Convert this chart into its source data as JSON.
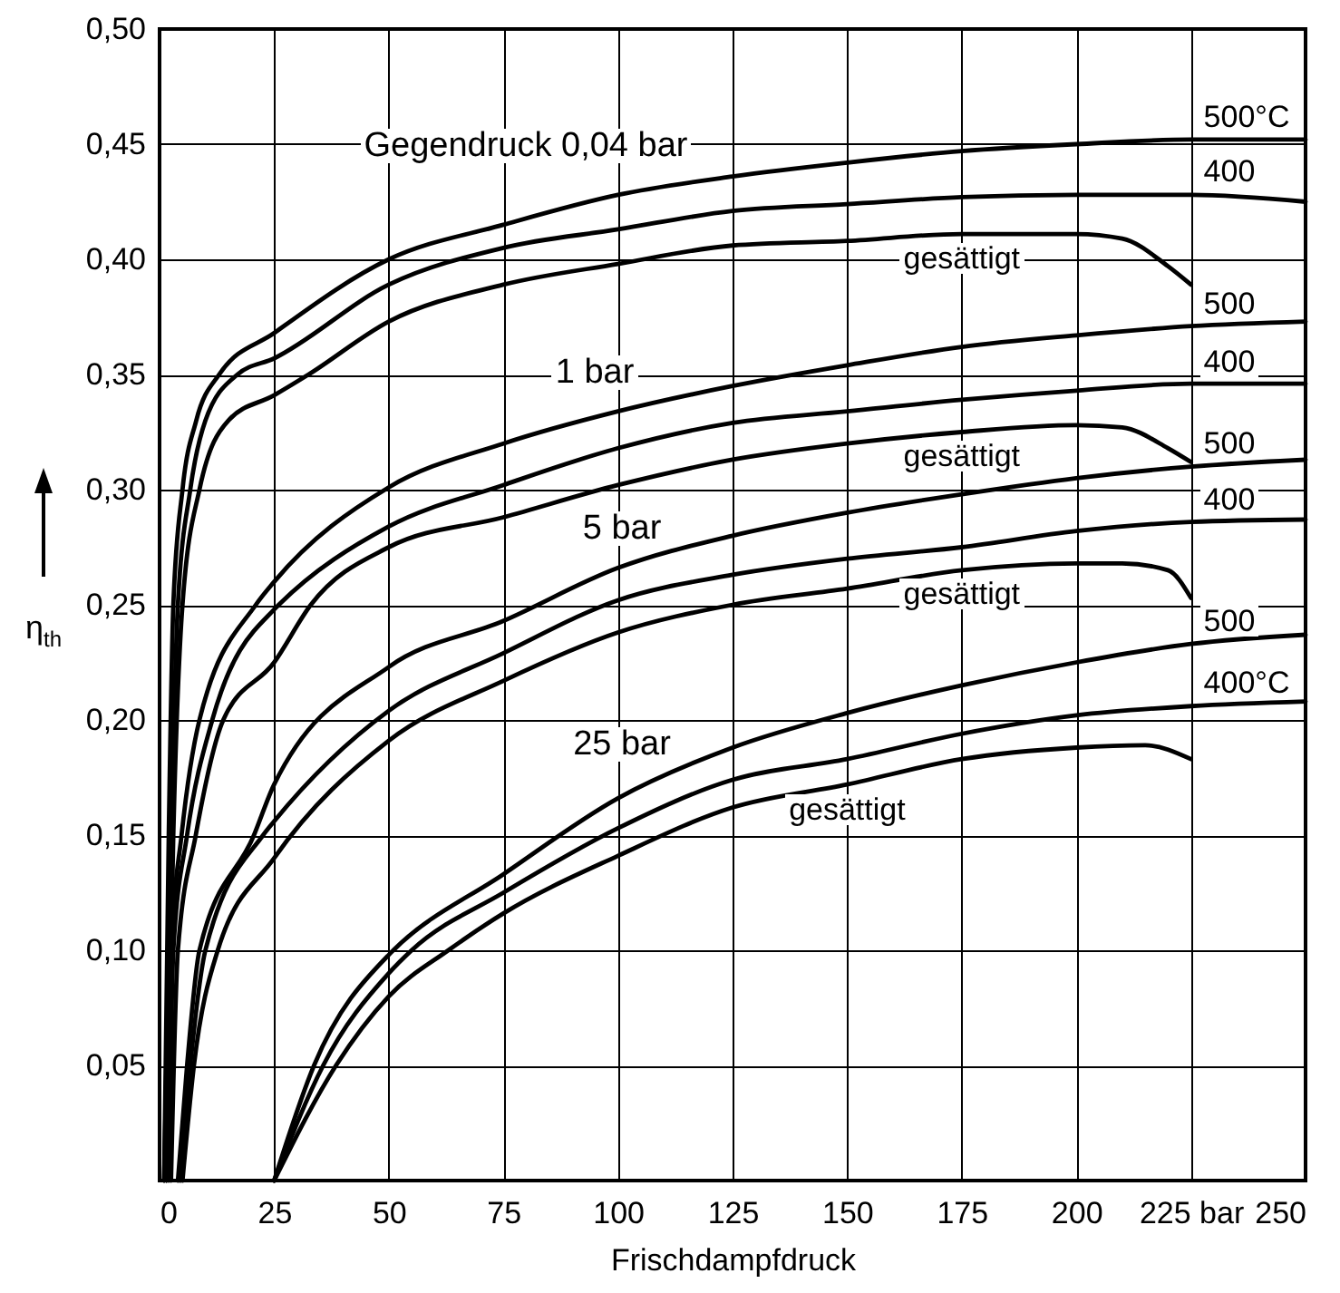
{
  "chart_data": {
    "type": "line",
    "xlabel": "Frischdampfdruck",
    "ylabel": "η$_{th}$",
    "xlim": [
      0,
      250
    ],
    "ylim": [
      0,
      0.5
    ],
    "xticks": [
      0,
      25,
      50,
      75,
      100,
      125,
      150,
      175,
      200,
      {
        "value": 225,
        "label": "225 bar"
      },
      250
    ],
    "yticks": [
      {
        "value": 0,
        "label": null
      },
      {
        "value": 0.05,
        "label": "0,05"
      },
      {
        "value": 0.1,
        "label": "0,10"
      },
      {
        "value": 0.15,
        "label": "0,15"
      },
      {
        "value": 0.2,
        "label": "0,20"
      },
      {
        "value": 0.25,
        "label": "0,25"
      },
      {
        "value": 0.3,
        "label": "0,30"
      },
      {
        "value": 0.35,
        "label": "0,35"
      },
      {
        "value": 0.4,
        "label": "0,40"
      },
      {
        "value": 0.45,
        "label": "0,45"
      },
      {
        "value": 0.5,
        "label": "0,50"
      }
    ],
    "grid": true,
    "series": [
      {
        "name": "500°C",
        "color": "#000000",
        "x": [
          1,
          2,
          3,
          5,
          8,
          13,
          25,
          50,
          75,
          100,
          125,
          150,
          175,
          200,
          225,
          250
        ],
        "values": [
          0,
          0.15,
          0.25,
          0.3,
          0.33,
          0.35,
          0.368,
          0.4,
          0.415,
          0.428,
          0.436,
          0.442,
          0.447,
          0.45,
          0.452,
          0.452
        ]
      },
      {
        "name": "400",
        "color": "#000000",
        "x": [
          1,
          2.5,
          4,
          6.7,
          10,
          17,
          25,
          50,
          75,
          100,
          125,
          150,
          175,
          200,
          225,
          250
        ],
        "values": [
          0,
          0.15,
          0.25,
          0.3,
          0.33,
          0.35,
          0.357,
          0.389,
          0.405,
          0.413,
          0.421,
          0.424,
          0.427,
          0.428,
          0.428,
          0.425
        ]
      },
      {
        "name": "gesättigt",
        "color": "#000000",
        "x": [
          1.5,
          3,
          5,
          8.7,
          15,
          25,
          32.5,
          50,
          75,
          100,
          125,
          150,
          175,
          200,
          210,
          220,
          225
        ],
        "values": [
          0,
          0.15,
          0.25,
          0.3,
          0.33,
          0.341,
          0.35,
          0.373,
          0.389,
          0.398,
          0.406,
          0.408,
          0.411,
          0.411,
          0.409,
          0.397,
          0.389
        ]
      },
      {
        "name": "500",
        "color": "#000000",
        "x": [
          1.5,
          2.5,
          4.8,
          8.7,
          21,
          25,
          50,
          75,
          100,
          125,
          150,
          175,
          200,
          225,
          250
        ],
        "values": [
          0,
          0.1,
          0.15,
          0.2,
          0.25,
          0.26,
          0.301,
          0.32,
          0.334,
          0.345,
          0.354,
          0.362,
          0.367,
          0.371,
          0.373
        ]
      },
      {
        "name": "400",
        "color": "#000000",
        "x": [
          2,
          3,
          6,
          11.5,
          25,
          26,
          50,
          75,
          100,
          125,
          150,
          175,
          200,
          225,
          250
        ],
        "values": [
          0,
          0.1,
          0.15,
          0.2,
          0.248,
          0.25,
          0.284,
          0.302,
          0.318,
          0.329,
          0.334,
          0.339,
          0.343,
          0.346,
          0.346
        ]
      },
      {
        "name": "gesättigt",
        "color": "#000000",
        "x": [
          2.5,
          4,
          7.9,
          13.9,
          25,
          33,
          50,
          75,
          100,
          125,
          150,
          175,
          200,
          210,
          220,
          225
        ],
        "values": [
          0,
          0.1,
          0.15,
          0.2,
          0.225,
          0.25,
          0.275,
          0.288,
          0.302,
          0.313,
          0.32,
          0.325,
          0.328,
          0.327,
          0.318,
          0.312
        ]
      },
      {
        "name": "500",
        "color": "#000000",
        "x": [
          4,
          6,
          8.7,
          20.6,
          25,
          50,
          75,
          100,
          125,
          150,
          175,
          200,
          225,
          250
        ],
        "values": [
          0,
          0.05,
          0.1,
          0.15,
          0.172,
          0.223,
          0.243,
          0.266,
          0.28,
          0.29,
          0.298,
          0.305,
          0.31,
          0.313
        ]
      },
      {
        "name": "400",
        "color": "#000000",
        "x": [
          4.5,
          6.7,
          10,
          22.6,
          25,
          50,
          75,
          100,
          125,
          150,
          175,
          200,
          225,
          250
        ],
        "values": [
          0,
          0.05,
          0.1,
          0.15,
          0.156,
          0.204,
          0.229,
          0.252,
          0.263,
          0.27,
          0.275,
          0.282,
          0.286,
          0.287
        ]
      },
      {
        "name": "gesättigt",
        "color": "#000000",
        "x": [
          5,
          7.5,
          12.7,
          25,
          50,
          75,
          100,
          125,
          150,
          175,
          200,
          210,
          220,
          225
        ],
        "values": [
          0,
          0.05,
          0.1,
          0.14,
          0.191,
          0.217,
          0.238,
          0.25,
          0.257,
          0.265,
          0.268,
          0.268,
          0.265,
          0.253
        ]
      },
      {
        "name": "500",
        "color": "#000000",
        "x": [
          25,
          33.7,
          50,
          51,
          75,
          100,
          125,
          150,
          175,
          200,
          225,
          250
        ],
        "values": [
          0,
          0.05,
          0.098,
          0.1,
          0.133,
          0.166,
          0.188,
          0.203,
          0.215,
          0.225,
          0.233,
          0.237
        ]
      },
      {
        "name": "400°C",
        "color": "#000000",
        "x": [
          25,
          35.7,
          50,
          55,
          75,
          100,
          125,
          150,
          175,
          200,
          225,
          250
        ],
        "values": [
          0,
          0.05,
          0.09,
          0.1,
          0.125,
          0.153,
          0.174,
          0.183,
          0.194,
          0.202,
          0.206,
          0.208
        ]
      },
      {
        "name": "gesättigt",
        "color": "#000000",
        "x": [
          25,
          38.5,
          50,
          63,
          75,
          100,
          125,
          150,
          175,
          200,
          215,
          225
        ],
        "values": [
          0,
          0.05,
          0.08,
          0.1,
          0.116,
          0.141,
          0.162,
          0.172,
          0.183,
          0.188,
          0.189,
          0.183
        ]
      }
    ],
    "annotations": [
      "Gegendruck 0,04 bar",
      "1 bar",
      "5 bar",
      "25 bar"
    ]
  }
}
